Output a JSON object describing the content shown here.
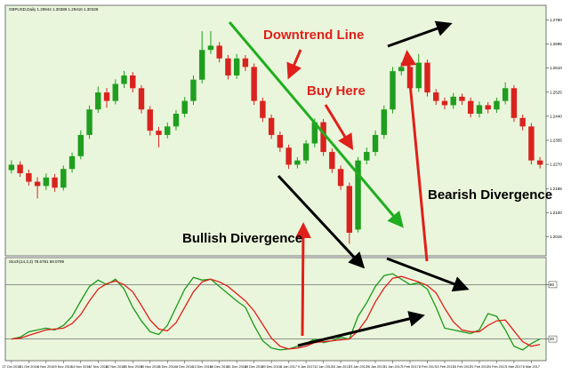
{
  "chart_data": [
    {
      "type": "candlestick",
      "title": "GBPUSD,Daily 1.29944 1.30389 1.29416 1.30328",
      "annotations": [
        "Downtrend Line",
        "Buy Here",
        "Bullish Divergence",
        "Bearish Divergence"
      ],
      "categories": [
        "27 Oct 2016",
        null,
        "31 Oct 2016",
        null,
        "4 Nov 2016",
        null,
        "9 Nov 2016",
        null,
        "14 Nov 2016",
        null,
        "17 Nov 2016",
        null,
        "22 Nov 2016",
        null,
        "25 Nov 2016",
        null,
        "30 Nov 2016",
        null,
        "5 Dec 2016",
        null,
        "8 Dec 2016",
        null,
        "13 Dec 2016",
        null,
        "16 Dec 2016",
        null,
        "21 Dec 2016",
        null,
        "26 Dec 2016",
        null,
        "29 Dec 2016",
        null,
        "4 Jan 2017",
        null,
        "9 Jan 2017",
        null,
        "12 Jan 2017",
        null,
        "18 Jan 2017",
        null,
        "23 Jan 2017",
        null,
        "26 Jan 2017",
        null,
        "31 Jan 2017",
        null,
        "3 Feb 2017",
        null,
        "8 Feb 2017",
        null,
        "13 Feb 2017",
        null,
        "16 Feb 2017",
        null,
        "21 Feb 2017",
        null,
        "24 Feb 2017",
        null,
        "1 Mar 2017",
        null,
        "6 Mar 2017",
        null
      ],
      "open": [
        1.225,
        1.2269,
        1.2239,
        1.2209,
        1.2194,
        1.2224,
        1.2188,
        1.2254,
        1.2299,
        1.2374,
        1.2464,
        1.2524,
        1.2494,
        1.2554,
        1.2584,
        1.2539,
        1.2464,
        1.2389,
        1.2374,
        1.2404,
        1.2449,
        1.2494,
        1.2569,
        1.2674,
        1.2689,
        1.2644,
        1.2584,
        1.2644,
        1.2614,
        1.2494,
        1.2434,
        1.2374,
        1.2329,
        1.2269,
        1.2284,
        1.2344,
        1.2419,
        1.2314,
        1.2254,
        1.2194,
        1.204,
        1.2284,
        1.2314,
        1.2374,
        1.2464,
        1.2599,
        1.2614,
        1.2539,
        1.2629,
        1.2524,
        1.2494,
        1.2479,
        1.2509,
        1.2494,
        1.2449,
        1.2479,
        1.2464,
        1.2494,
        1.2539,
        1.2434,
        1.2404,
        1.2284
      ],
      "high": [
        1.2285,
        1.2281,
        1.2252,
        1.2225,
        1.2238,
        1.2236,
        1.2266,
        1.2312,
        1.239,
        1.2478,
        1.2545,
        1.254,
        1.257,
        1.26,
        1.2596,
        1.255,
        1.2476,
        1.2402,
        1.2418,
        1.2462,
        1.2508,
        1.2584,
        1.274,
        1.274,
        1.2702,
        1.2656,
        1.266,
        1.2656,
        1.2626,
        1.2506,
        1.2446,
        1.2386,
        1.234,
        1.2296,
        1.2356,
        1.2432,
        1.243,
        1.2326,
        1.2266,
        1.2206,
        1.2296,
        1.233,
        1.239,
        1.2478,
        1.2614,
        1.263,
        1.2626,
        1.266,
        1.264,
        1.2536,
        1.2506,
        1.2522,
        1.252,
        1.2506,
        1.2492,
        1.249,
        1.2506,
        1.256,
        1.255,
        1.2446,
        1.2416,
        1.2296
      ],
      "low": [
        1.2238,
        1.2226,
        1.2195,
        1.215,
        1.218,
        1.2174,
        1.2178,
        1.2241,
        1.2288,
        1.236,
        1.2452,
        1.247,
        1.2482,
        1.254,
        1.2524,
        1.245,
        1.2372,
        1.233,
        1.2362,
        1.239,
        1.2436,
        1.248,
        1.2556,
        1.266,
        1.263,
        1.257,
        1.2572,
        1.26,
        1.248,
        1.242,
        1.236,
        1.2314,
        1.2254,
        1.2256,
        1.2272,
        1.233,
        1.23,
        1.224,
        1.218,
        1.199,
        1.203,
        1.227,
        1.23,
        1.236,
        1.245,
        1.2584,
        1.2524,
        1.2526,
        1.251,
        1.248,
        1.2464,
        1.2466,
        1.248,
        1.2436,
        1.2436,
        1.245,
        1.2452,
        1.2482,
        1.242,
        1.239,
        1.227,
        1.2256
      ],
      "close": [
        1.2269,
        1.2239,
        1.2209,
        1.2194,
        1.2224,
        1.2188,
        1.2254,
        1.2299,
        1.2374,
        1.2464,
        1.2524,
        1.2494,
        1.2554,
        1.2584,
        1.2539,
        1.2464,
        1.2389,
        1.2374,
        1.2404,
        1.2449,
        1.2494,
        1.2569,
        1.2674,
        1.2689,
        1.2644,
        1.2584,
        1.2644,
        1.2614,
        1.2494,
        1.2434,
        1.2374,
        1.2329,
        1.2269,
        1.2284,
        1.2344,
        1.2419,
        1.2314,
        1.2254,
        1.2194,
        1.2029,
        1.2284,
        1.2314,
        1.2374,
        1.2464,
        1.2599,
        1.2614,
        1.2539,
        1.2629,
        1.2524,
        1.2494,
        1.2479,
        1.2509,
        1.2494,
        1.2449,
        1.2479,
        1.2464,
        1.2494,
        1.2539,
        1.2434,
        1.2404,
        1.2284,
        1.2269
      ],
      "up_color": "#1f9e1f",
      "down_color": "#d8231f",
      "ylim": [
        1.196,
        1.28
      ],
      "yticks": [
        {
          "value": 1.278,
          "label": "1.2780"
        },
        1.2695,
        {
          "value": 1.261,
          "label": "1.2610"
        },
        1.2525,
        {
          "value": 1.244,
          "label": "1.2440"
        },
        1.2355,
        {
          "value": 1.227,
          "label": "1.2270"
        },
        1.2185,
        {
          "value": 1.21,
          "label": "1.2100"
        },
        1.2015
      ]
    },
    {
      "type": "line",
      "title": "Stoch(14,3,3) 78.6781 69.0799",
      "series": [
        {
          "color": "#1a9a1a",
          "values": [
            20,
            22,
            28,
            30,
            32,
            30,
            35,
            45,
            62,
            78,
            85,
            80,
            86,
            75,
            55,
            40,
            28,
            25,
            35,
            55,
            75,
            88,
            85,
            86,
            78,
            70,
            62,
            55,
            35,
            18,
            10,
            8,
            9,
            12,
            15,
            20,
            16,
            18,
            22,
            20,
            45,
            60,
            78,
            90,
            92,
            86,
            80,
            82,
            75,
            55,
            32,
            30,
            28,
            26,
            30,
            48,
            45,
            30,
            12,
            8,
            15,
            20
          ]
        },
        {
          "color": "#e0201a",
          "values": [
            20,
            21,
            24,
            27,
            30,
            31,
            32,
            37,
            47,
            62,
            75,
            81,
            84,
            80,
            72,
            57,
            41,
            31,
            29,
            38,
            55,
            72,
            83,
            86,
            83,
            78,
            70,
            62,
            51,
            36,
            21,
            12,
            9,
            10,
            12,
            16,
            17,
            18,
            19,
            20,
            29,
            42,
            61,
            76,
            87,
            89,
            86,
            83,
            79,
            71,
            54,
            39,
            30,
            28,
            28,
            35,
            40,
            41,
            29,
            17,
            12,
            14
          ]
        }
      ],
      "ylim": [
        0,
        100
      ],
      "yticks": [
        20,
        80
      ]
    }
  ]
}
